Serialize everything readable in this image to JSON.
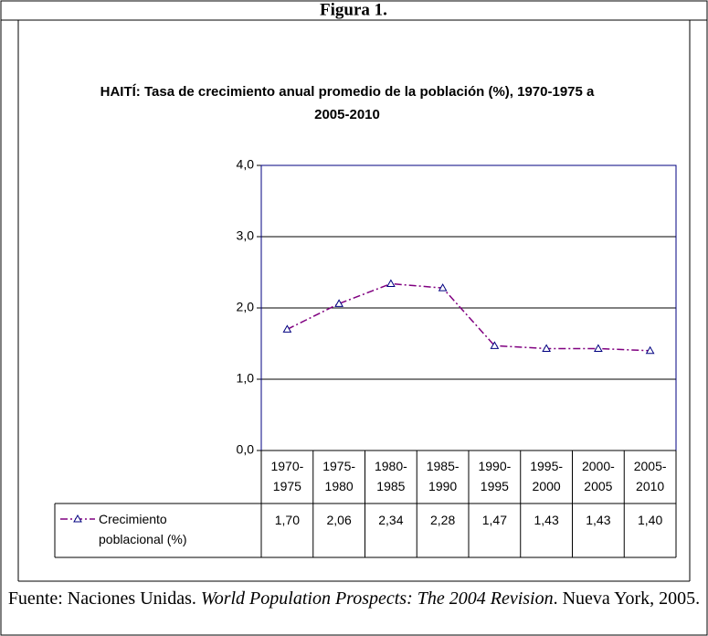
{
  "header": {
    "title": "Figura 1."
  },
  "chart_data": {
    "type": "line",
    "title": "HAITÍ: Tasa de crecimiento anual promedio de la población (%), 1970-1975 a 2005-2010",
    "categories": [
      "1970-1975",
      "1975-1980",
      "1980-1985",
      "1985-1990",
      "1990-1995",
      "1995-2000",
      "2000-2005",
      "2005-2010"
    ],
    "series": [
      {
        "name": "Crecimiento poblacional (%)",
        "color": "#800080",
        "values": [
          1.7,
          2.06,
          2.34,
          2.28,
          1.47,
          1.43,
          1.43,
          1.4
        ],
        "value_labels": [
          "1,70",
          "2,06",
          "2,34",
          "2,28",
          "1,47",
          "1,43",
          "1,43",
          "1,40"
        ]
      }
    ],
    "ylim": [
      0,
      4
    ],
    "yticks": [
      {
        "value": 0,
        "label": "0,0"
      },
      {
        "value": 1,
        "label": "1,0"
      },
      {
        "value": 2,
        "label": "2,0"
      },
      {
        "value": 3,
        "label": "3,0"
      },
      {
        "value": 4,
        "label": "4,0"
      }
    ],
    "grid": true
  },
  "footer": {
    "source_prefix": "Fuente: Naciones Unidas. ",
    "source_title": "World Population Prospects: The 2004 Revision",
    "source_suffix": ". Nueva York, 2005."
  }
}
